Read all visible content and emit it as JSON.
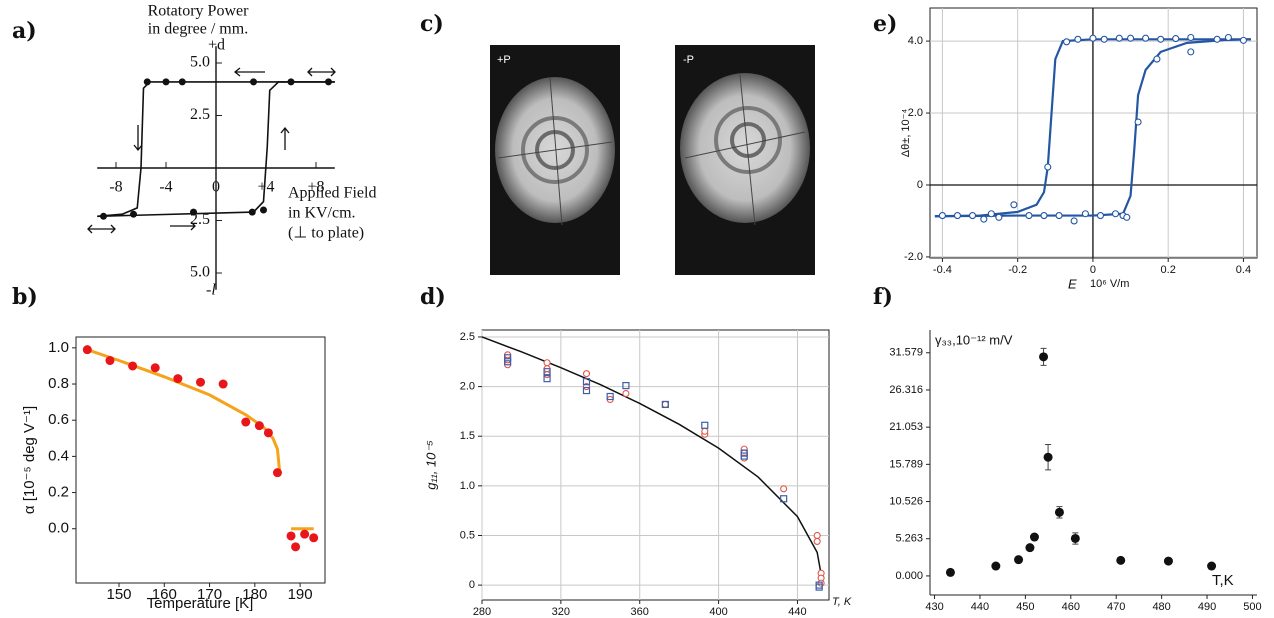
{
  "chart_data": [
    {
      "type": "line",
      "panel_label": "a)",
      "title_lines": [
        "Rotatory Power",
        "in degree / mm."
      ],
      "y_top_label": "+d",
      "y_bottom_label": "-l",
      "xlabel_lines": [
        "Applied Field",
        "in KV/cm.",
        "(⊥ to plate)"
      ],
      "xlim": [
        -10,
        10
      ],
      "ylim": [
        -6,
        6
      ],
      "xticks": [
        -8,
        -4,
        0,
        {
          "value": 4,
          "label": "+4"
        },
        {
          "value": 8,
          "label": "+8"
        }
      ],
      "yticks": [
        {
          "value": 5,
          "label": "5.0"
        },
        2.5,
        {
          "value": -2.5,
          "label": "2.5"
        },
        {
          "value": -5,
          "label": "5.0"
        }
      ],
      "series": [
        {
          "color": "#111111",
          "mode": "line",
          "x": [
            9.5,
            -5.3,
            -5.8,
            -6.0,
            -6.3,
            -7.5,
            -9.5
          ],
          "values": [
            4.1,
            4.1,
            3.8,
            0,
            -1.9,
            -2.2,
            -2.3
          ]
        },
        {
          "color": "#111111",
          "mode": "line",
          "x": [
            -9.5,
            3.0,
            3.8,
            4.1,
            4.3,
            5,
            9.5
          ],
          "values": [
            -2.3,
            -2.1,
            -1.6,
            1,
            3.7,
            4.1,
            4.1
          ]
        },
        {
          "color": "#111111",
          "mode": "markers",
          "marker": "dot",
          "x": [
            -5.5,
            -4,
            -2.7,
            3,
            6,
            9,
            -9,
            -6.6,
            -1.8,
            2.9,
            3.8
          ],
          "values": [
            4.1,
            4.1,
            4.1,
            4.1,
            4.1,
            4.1,
            -2.3,
            -2.2,
            -2.1,
            -2.1,
            -2.0
          ]
        }
      ]
    },
    {
      "type": "line",
      "panel_label": "b)",
      "ylabel": "α [10⁻⁵ deg V⁻¹]",
      "xlabel": "Temperature [K]",
      "xlim": [
        140.5,
        195.5
      ],
      "ylim": [
        -0.3,
        1.06
      ],
      "xticks": [
        150,
        160,
        170,
        180,
        190
      ],
      "yticks": [
        {
          "value": 0,
          "label": "0.0"
        },
        0.2,
        0.4,
        0.6,
        0.8,
        {
          "value": 1,
          "label": "1.0"
        }
      ],
      "series": [
        {
          "color": "#f5a31a",
          "mode": "line",
          "x": [
            143,
            150,
            160,
            170,
            178,
            182,
            184,
            185,
            185.5,
            null,
            188,
            193
          ],
          "values": [
            0.99,
            0.93,
            0.84,
            0.74,
            0.63,
            0.56,
            0.5,
            0.44,
            0.31,
            null,
            0,
            0
          ]
        },
        {
          "color": "#e8161b",
          "mode": "markers",
          "marker": "dot",
          "x": [
            143,
            148,
            153,
            158,
            163,
            168,
            173,
            178,
            181,
            183,
            185,
            188,
            189,
            191,
            193
          ],
          "values": [
            0.99,
            0.93,
            0.9,
            0.89,
            0.83,
            0.81,
            0.8,
            0.59,
            0.57,
            0.53,
            0.31,
            -0.04,
            -0.1,
            -0.03,
            -0.05
          ]
        }
      ]
    },
    {
      "type": "image",
      "panel_label": "c)",
      "image_labels": [
        "+P",
        "-P"
      ]
    },
    {
      "type": "line",
      "panel_label": "d)",
      "ylabel": "g₁₁, 10⁻⁵",
      "xlabel": "T, K",
      "grid": true,
      "xlim": [
        280,
        456
      ],
      "ylim": [
        -0.15,
        2.57
      ],
      "xticks": [
        280,
        320,
        360,
        400,
        440
      ],
      "yticks": [
        0,
        0.5,
        {
          "value": 1,
          "label": "1.0"
        },
        1.5,
        {
          "value": 2,
          "label": "2.0"
        },
        2.5
      ],
      "series": [
        {
          "color": "#111111",
          "mode": "line",
          "x": [
            280,
            300,
            320,
            340,
            360,
            380,
            400,
            420,
            440,
            450,
            453
          ],
          "values": [
            2.5,
            2.35,
            2.19,
            2.02,
            1.83,
            1.62,
            1.38,
            1.09,
            0.69,
            0.33,
            0
          ]
        },
        {
          "color": "#e0554a",
          "mode": "markers",
          "marker": "circle",
          "x": [
            293,
            293,
            293,
            313,
            313,
            313,
            333,
            333,
            345,
            353,
            373,
            393,
            393,
            413,
            413,
            413,
            433,
            450,
            450,
            452,
            452,
            452
          ],
          "values": [
            2.22,
            2.27,
            2.32,
            2.24,
            2.18,
            2.12,
            2.13,
            2.0,
            1.87,
            1.93,
            1.82,
            1.52,
            1.55,
            1.37,
            1.33,
            1.28,
            0.97,
            0.5,
            0.44,
            0.12,
            0.07,
            0.02
          ]
        },
        {
          "color": "#3d5fa8",
          "mode": "markers",
          "marker": "square",
          "x": [
            293,
            293,
            313,
            313,
            333,
            333,
            345,
            353,
            373,
            393,
            413,
            413,
            433,
            451,
            451
          ],
          "values": [
            2.25,
            2.29,
            2.08,
            2.15,
            1.96,
            2.05,
            1.9,
            2.01,
            1.82,
            1.61,
            1.3,
            1.33,
            0.87,
            0,
            -0.02
          ]
        }
      ]
    },
    {
      "type": "line",
      "panel_label": "e)",
      "ylabel": "Δθ±, 10⁻⁴",
      "xlabel_parts": [
        "E",
        "10⁶ V/m"
      ],
      "grid": true,
      "zero_lines": true,
      "xlim": [
        -0.433,
        0.436
      ],
      "ylim": [
        -2.03,
        4.92
      ],
      "xticks": [
        -0.4,
        -0.2,
        0,
        0.2,
        0.4
      ],
      "yticks": [
        {
          "value": -2,
          "label": "-2.0"
        },
        0,
        {
          "value": 2,
          "label": "2.0"
        },
        {
          "value": 4,
          "label": "4.0"
        }
      ],
      "series": [
        {
          "color": "#2456a4",
          "mode": "line",
          "x": [
            0.42,
            0.2,
            0,
            -0.08,
            -0.1,
            -0.11,
            -0.12,
            -0.13,
            -0.15,
            -0.2,
            -0.3,
            -0.42
          ],
          "values": [
            4.05,
            4.05,
            4.05,
            4.0,
            3.5,
            2.0,
            0.5,
            -0.2,
            -0.55,
            -0.75,
            -0.85,
            -0.87
          ]
        },
        {
          "color": "#2456a4",
          "mode": "line",
          "x": [
            -0.42,
            -0.2,
            0,
            0.08,
            0.1,
            0.11,
            0.12,
            0.14,
            0.18,
            0.25,
            0.35,
            0.42
          ],
          "values": [
            -0.87,
            -0.85,
            -0.85,
            -0.8,
            -0.3,
            1.0,
            2.5,
            3.2,
            3.7,
            3.95,
            4.03,
            4.05
          ]
        },
        {
          "color": "#2456a4",
          "mode": "markers",
          "marker": "circle",
          "x": [
            -0.07,
            -0.04,
            0,
            0.03,
            0.07,
            0.1,
            0.14,
            0.18,
            0.22,
            0.26,
            0.33,
            0.36,
            0.4,
            -0.12,
            0.12,
            0.17,
            0.26,
            -0.4,
            -0.36,
            -0.32,
            -0.29,
            -0.27,
            -0.25,
            -0.21,
            -0.17,
            -0.13,
            -0.09,
            -0.05,
            -0.02,
            0.02,
            0.06,
            0.08,
            0.09
          ],
          "values": [
            3.98,
            4.05,
            4.08,
            4.05,
            4.08,
            4.08,
            4.08,
            4.05,
            4.07,
            4.1,
            4.05,
            4.1,
            4.02,
            0.5,
            1.75,
            3.5,
            3.7,
            -0.85,
            -0.85,
            -0.85,
            -0.95,
            -0.8,
            -0.9,
            -0.55,
            -0.85,
            -0.85,
            -0.85,
            -1.0,
            -0.8,
            -0.85,
            -0.8,
            -0.85,
            -0.9
          ]
        }
      ]
    },
    {
      "type": "scatter",
      "panel_label": "f)",
      "ylabel": "γ₃₃,10⁻¹² m/V",
      "xlabel": "T,K",
      "xlim": [
        429,
        501
      ],
      "ylim": [
        -2.7,
        34.8
      ],
      "xticks": [
        430,
        440,
        450,
        460,
        470,
        480,
        490,
        500
      ],
      "yticks": [
        {
          "value": 0,
          "label": "0.000"
        },
        5.263,
        10.526,
        15.789,
        21.053,
        26.316,
        31.579
      ],
      "series": [
        {
          "color": "#111111",
          "mode": "markers",
          "marker": "dot",
          "x": [
            433.5,
            443.5,
            448.5,
            451,
            452,
            454,
            455,
            457.5,
            461,
            471,
            481.5,
            491
          ],
          "values": [
            0.5,
            1.4,
            2.3,
            4.0,
            5.5,
            31.0,
            16.8,
            9.0,
            5.3,
            2.2,
            2.1,
            1.4
          ],
          "errors": [
            null,
            null,
            null,
            null,
            null,
            1.2,
            1.8,
            0.8,
            0.8,
            null,
            null,
            null
          ]
        }
      ]
    }
  ]
}
